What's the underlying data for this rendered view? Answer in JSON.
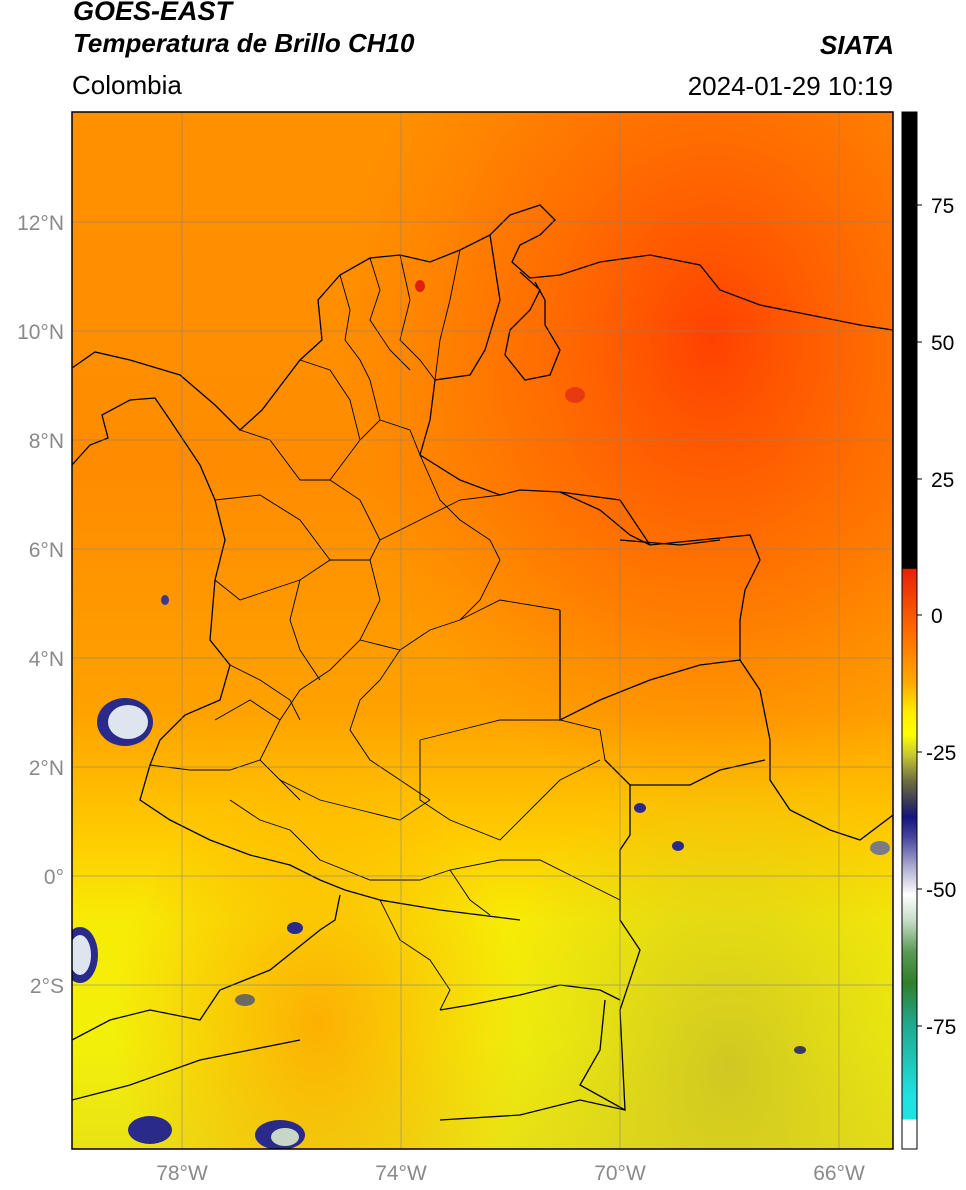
{
  "header": {
    "satellite": "GOES-EAST",
    "product": "Temperatura de Brillo CH10",
    "region": "Colombia",
    "source": "SIATA",
    "datetime": "2024-01-29 10:19"
  },
  "map": {
    "lon_range": [
      -80,
      -65
    ],
    "lat_range": [
      -5,
      14
    ],
    "lat_ticks": [
      "12°N",
      "10°N",
      "8°N",
      "6°N",
      "4°N",
      "2°N",
      "0°",
      "2°S"
    ],
    "lon_ticks": [
      "78°W",
      "74°W",
      "70°W",
      "66°W"
    ]
  },
  "colorbar": {
    "range": [
      -95,
      89
    ],
    "ticks": [
      "75",
      "50",
      "25",
      "0",
      "-25",
      "-50",
      "-75"
    ],
    "colors": {
      "top": "#000000",
      "red": "#e8200a",
      "orange": "#ff9900",
      "yellow": "#ffff00",
      "olive": "#7f7f2a",
      "navy": "#13147f",
      "white": "#ffffff",
      "green": "#2f7f2a",
      "teal": "#20a98f",
      "cyan": "#1fe3e3"
    }
  }
}
